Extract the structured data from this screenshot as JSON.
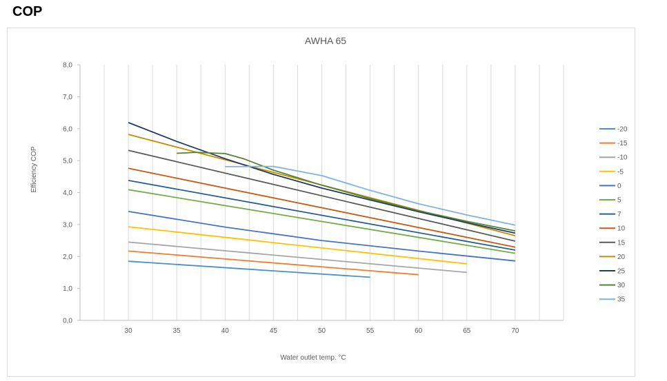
{
  "heading": "COP",
  "chart_data": {
    "type": "line",
    "title": "AWHA 65",
    "xlabel": "Water outlet temp. °C",
    "ylabel": "Efficiency COP",
    "xlim": [
      25,
      75
    ],
    "ylim": [
      0,
      8
    ],
    "xticks": [
      30,
      35,
      40,
      45,
      50,
      55,
      60,
      65,
      70
    ],
    "xtick_labels": [
      "30",
      "35",
      "40",
      "45",
      "50",
      "55",
      "60",
      "65",
      "70"
    ],
    "yticks": [
      0,
      1,
      2,
      3,
      4,
      5,
      6,
      7,
      8
    ],
    "ytick_labels": [
      "0,0",
      "1,0",
      "2,0",
      "3,0",
      "4,0",
      "5,0",
      "6,0",
      "7,0",
      "8,0"
    ],
    "grid": "vertical",
    "legend_position": "right",
    "series": [
      {
        "name": "-20",
        "color": "#4a90c8",
        "x": [
          30,
          55
        ],
        "y": [
          1.85,
          1.35
        ]
      },
      {
        "name": "-15",
        "color": "#ed7d31",
        "x": [
          30,
          60
        ],
        "y": [
          2.17,
          1.43
        ]
      },
      {
        "name": "-10",
        "color": "#a5a5a5",
        "x": [
          30,
          65
        ],
        "y": [
          2.45,
          1.5
        ]
      },
      {
        "name": "-5",
        "color": "#ffc000",
        "x": [
          30,
          65
        ],
        "y": [
          2.93,
          1.77
        ]
      },
      {
        "name": "0",
        "color": "#4472c4",
        "x": [
          30,
          40,
          50,
          60,
          70
        ],
        "y": [
          3.41,
          2.92,
          2.5,
          2.17,
          1.86
        ]
      },
      {
        "name": "5",
        "color": "#70ad47",
        "x": [
          30,
          70
        ],
        "y": [
          4.09,
          2.1
        ]
      },
      {
        "name": "7",
        "color": "#255e91",
        "x": [
          30,
          70
        ],
        "y": [
          4.38,
          2.2
        ]
      },
      {
        "name": "10",
        "color": "#c55a11",
        "x": [
          30,
          70
        ],
        "y": [
          4.76,
          2.29
        ]
      },
      {
        "name": "15",
        "color": "#595959",
        "x": [
          30,
          70
        ],
        "y": [
          5.32,
          2.48
        ]
      },
      {
        "name": "20",
        "color": "#bf8f00",
        "x": [
          30,
          70
        ],
        "y": [
          5.82,
          2.65
        ]
      },
      {
        "name": "25",
        "color": "#203864",
        "x": [
          30,
          35,
          40,
          45,
          50,
          55,
          60,
          65,
          70
        ],
        "y": [
          6.19,
          5.6,
          5.06,
          4.57,
          4.14,
          3.77,
          3.4,
          3.06,
          2.73
        ]
      },
      {
        "name": "30",
        "color": "#548235",
        "x": [
          35,
          37,
          40,
          42,
          45,
          50,
          55,
          60,
          65,
          70
        ],
        "y": [
          5.23,
          5.26,
          5.22,
          5.05,
          4.7,
          4.23,
          3.81,
          3.43,
          3.1,
          2.8
        ]
      },
      {
        "name": "35",
        "color": "#7fb2de",
        "x": [
          40,
          45,
          50,
          55,
          60,
          65,
          70
        ],
        "y": [
          4.81,
          4.82,
          4.53,
          4.07,
          3.65,
          3.3,
          2.98
        ]
      }
    ]
  }
}
